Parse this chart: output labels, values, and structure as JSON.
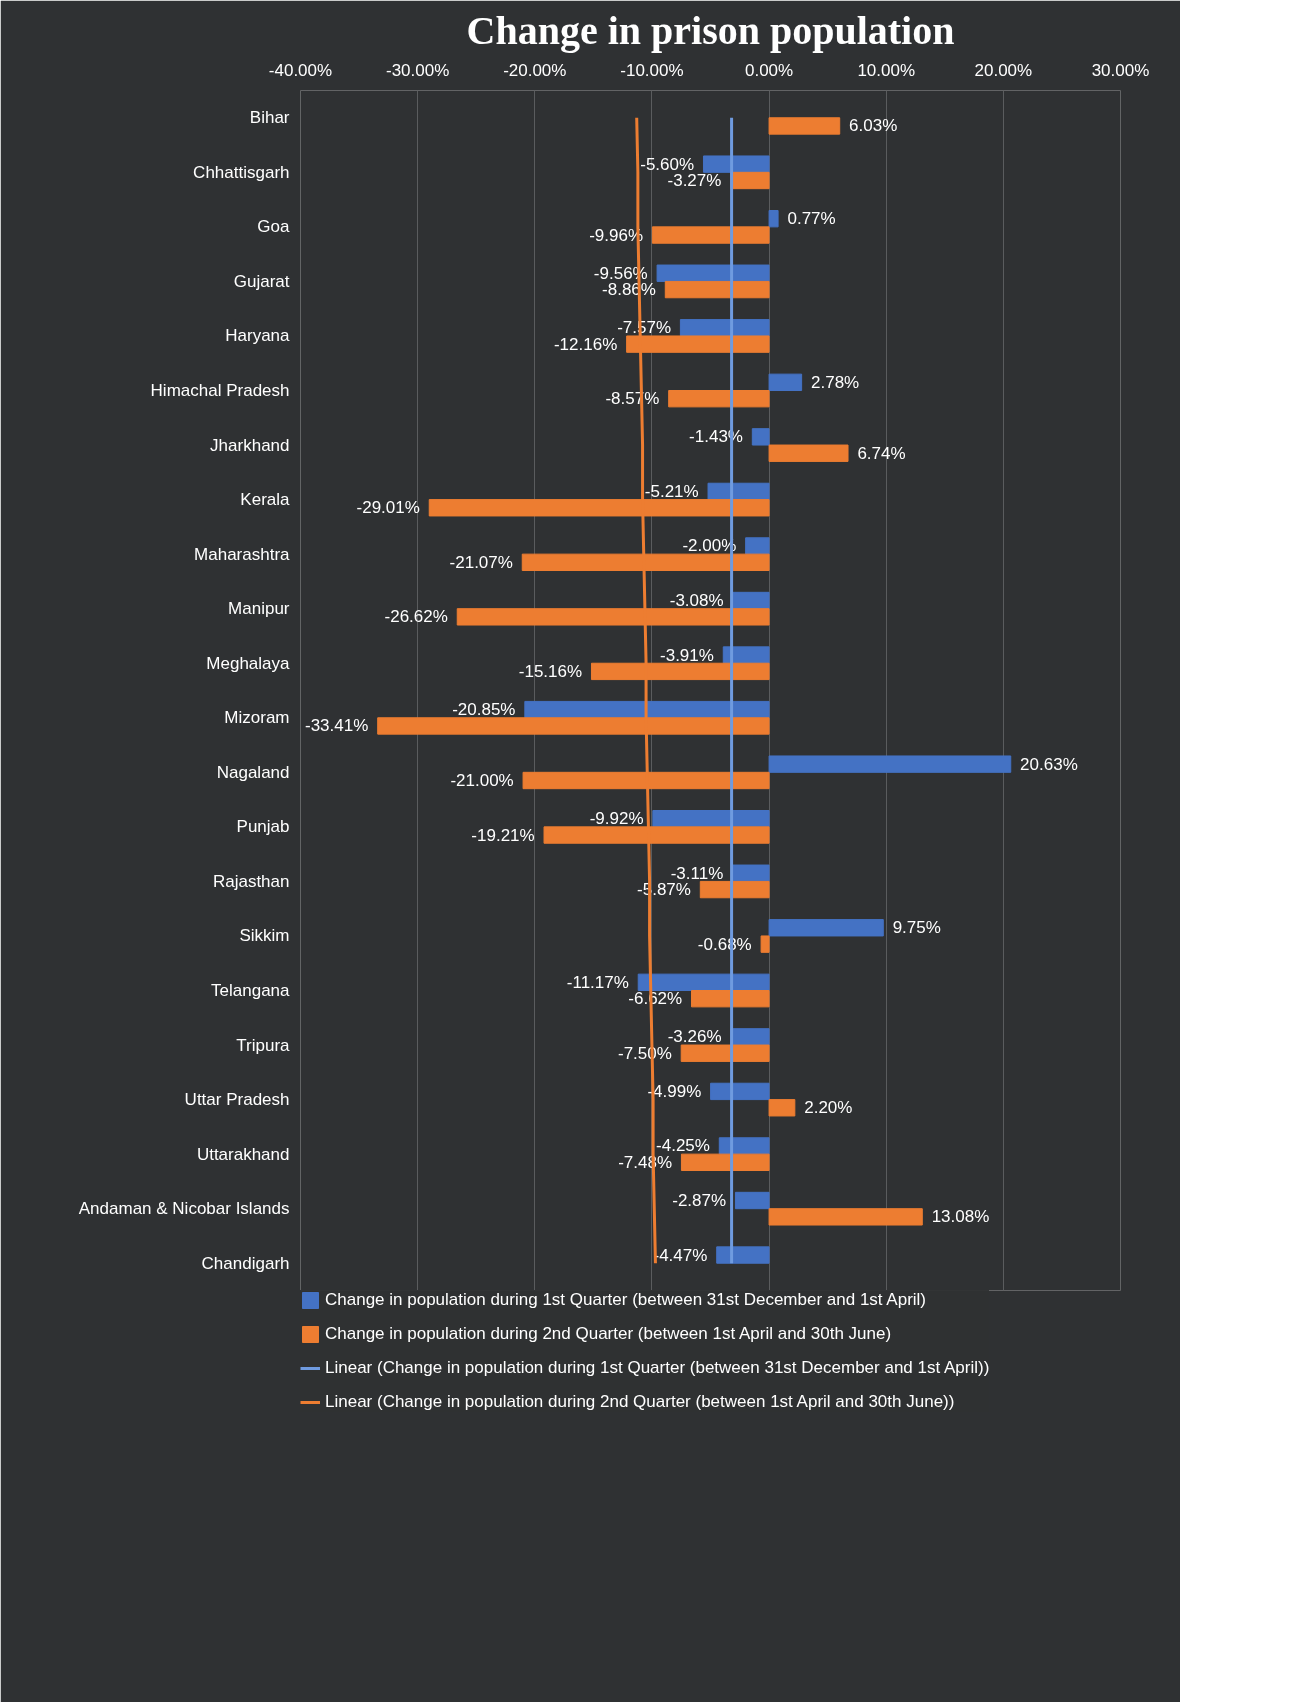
{
  "chart_data": {
    "type": "bar",
    "orientation": "horizontal",
    "title": "Change in prison population",
    "categories": [
      "Bihar",
      "Chhattisgarh",
      "Goa",
      "Gujarat",
      "Haryana",
      "Himachal Pradesh",
      "Jharkhand",
      "Kerala",
      "Maharashtra",
      "Manipur",
      "Meghalaya",
      "Mizoram",
      "Nagaland",
      "Punjab",
      "Rajasthan",
      "Sikkim",
      "Telangana",
      "Tripura",
      "Uttar Pradesh",
      "Uttarakhand",
      "Andaman & Nicobar Islands",
      "Chandigarh"
    ],
    "series": [
      {
        "name": "Change in population during 1st Quarter (between 31st December and 1st April)",
        "color": "#4472c4",
        "values": [
          null,
          -5.6,
          0.77,
          -9.56,
          -7.57,
          2.78,
          -1.43,
          -5.21,
          -2.0,
          -3.08,
          -3.91,
          -20.85,
          20.63,
          -9.92,
          -3.11,
          9.75,
          -11.17,
          -3.26,
          -4.99,
          -4.25,
          -2.87,
          -4.47
        ],
        "value_labels": [
          null,
          "-5.60%",
          "0.77%",
          "-9.56%",
          "-7.57%",
          "2.78%",
          "-1.43%",
          "-5.21%",
          "-2.00%",
          "-3.08%",
          "-3.91%",
          "-20.85%",
          "20.63%",
          "-9.92%",
          "-3.11%",
          "9.75%",
          "-11.17%",
          "-3.26%",
          "-4.99%",
          "-4.25%",
          "-2.87%",
          "-4.47%"
        ]
      },
      {
        "name": "Change in population during 2nd Quarter (between 1st April and 30th June)",
        "color": "#ed7d31",
        "values": [
          6.03,
          -3.27,
          -9.96,
          -8.86,
          -12.16,
          -8.57,
          6.74,
          -29.01,
          -21.07,
          -26.62,
          -15.16,
          -33.41,
          -21.0,
          -19.21,
          -5.87,
          -0.68,
          -6.62,
          -7.5,
          2.2,
          -7.48,
          13.08,
          null
        ],
        "value_labels": [
          "6.03%",
          "-3.27%",
          "-9.96%",
          "-8.86%",
          "-12.16%",
          "-8.57%",
          "6.74%",
          "-29.01%",
          "-21.07%",
          "-26.62%",
          "-15.16%",
          "-33.41%",
          "-21.00%",
          "-19.21%",
          "-5.87%",
          "-0.68%",
          "-6.62%",
          "-7.50%",
          "2.20%",
          "-7.48%",
          "13.08%",
          null
        ]
      },
      {
        "type": "line",
        "name": "Linear (Change in population during 1st Quarter (between 31st December and 1st April))",
        "color": "#6f9be0",
        "values": [
          -3.2,
          -3.2,
          -3.2,
          -3.2,
          -3.2,
          -3.2,
          -3.2,
          -3.2,
          -3.2,
          -3.2,
          -3.2,
          -3.2,
          -3.2,
          -3.2,
          -3.2,
          -3.2,
          -3.2,
          -3.2,
          -3.2,
          -3.2,
          -3.2,
          -3.2
        ]
      },
      {
        "type": "line",
        "name": "Linear (Change in population during 2nd Quarter (between 1st April and 30th June))",
        "color": "#ed7d31",
        "values": [
          -11.3,
          -11.2,
          -11.2,
          -11.1,
          -11.0,
          -10.9,
          -10.8,
          -10.8,
          -10.7,
          -10.6,
          -10.5,
          -10.5,
          -10.4,
          -10.3,
          -10.2,
          -10.2,
          -10.1,
          -10.0,
          -9.9,
          -9.9,
          -9.8,
          -9.7
        ]
      }
    ],
    "xlim": [
      -40,
      30
    ],
    "xticks": [
      {
        "value": -40,
        "label": "-40.00%"
      },
      {
        "value": -30,
        "label": "-30.00%"
      },
      {
        "value": -20,
        "label": "-20.00%"
      },
      {
        "value": -10,
        "label": "-10.00%"
      },
      {
        "value": 0,
        "label": "0.00%"
      },
      {
        "value": 10,
        "label": "10.00%"
      },
      {
        "value": 20,
        "label": "20.00%"
      },
      {
        "value": 30,
        "label": "30.00%"
      }
    ],
    "grid": "x",
    "legend": "bottom"
  }
}
